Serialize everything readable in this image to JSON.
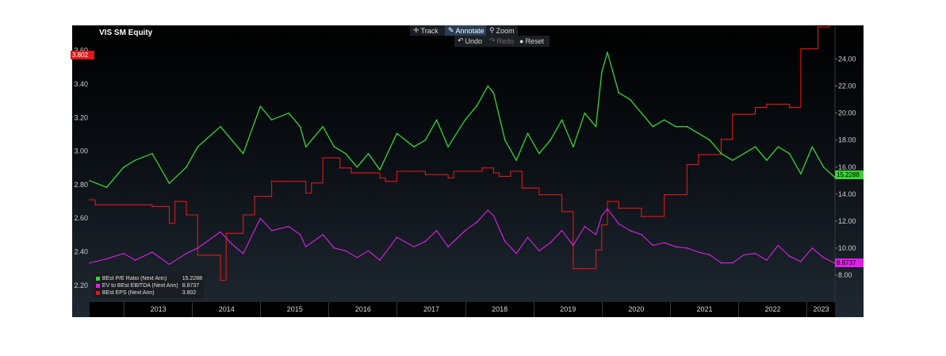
{
  "title": "VIS SM Equity",
  "toolbar": {
    "track_label": "Track",
    "annotate_label": "Annotate",
    "zoom_label": "Zoom",
    "undo_label": "Undo",
    "redo_label": "Redo",
    "reset_label": "Reset"
  },
  "badges": {
    "eps_last": "3.802",
    "pe_last": "15.2288",
    "ev_last": "8.8737"
  },
  "colors": {
    "pe": "#38d434",
    "ev": "#e020e8",
    "eps": "#e01818",
    "background": "#000000"
  },
  "chart_data": {
    "type": "line",
    "x_range": [
      "2012-07",
      "2023-06"
    ],
    "x_ticks": [
      "2013",
      "2014",
      "2015",
      "2016",
      "2017",
      "2018",
      "2019",
      "2020",
      "2021",
      "2022",
      "2023"
    ],
    "left_axis": {
      "ticks": [
        "2.20",
        "2.40",
        "2.60",
        "2.80",
        "3.00",
        "3.20",
        "3.40",
        "3.60"
      ],
      "ylim": [
        2.1,
        3.75
      ]
    },
    "right_axis": {
      "ticks": [
        "8.00",
        "10.00",
        "12.00",
        "14.00",
        "16.00",
        "18.00",
        "20.00",
        "22.00",
        "24.00"
      ],
      "ylim": [
        6.0,
        26.5
      ]
    },
    "legend": [
      {
        "name": "BEst P/E Ratio (Next Ann)",
        "value": "15.2288"
      },
      {
        "name": "EV to BEst EBITDA (Next Ann)",
        "value": "8.8737"
      },
      {
        "name": "BEst EPS (Next Ann)",
        "value": "3.802"
      }
    ],
    "series": [
      {
        "name": "BEst EPS (Next Ann)",
        "axis": "left",
        "x": [
          "2012-07",
          "2012-08",
          "2013-06",
          "2013-09",
          "2013-10",
          "2013-12",
          "2014-02",
          "2014-06",
          "2014-07",
          "2014-10",
          "2014-12",
          "2015-03",
          "2015-05",
          "2015-09",
          "2015-10",
          "2015-12",
          "2016-03",
          "2016-05",
          "2016-10",
          "2016-11",
          "2017-01",
          "2017-04",
          "2017-06",
          "2017-10",
          "2017-11",
          "2018-01",
          "2018-04",
          "2018-06",
          "2018-07",
          "2018-09",
          "2018-11",
          "2019-02",
          "2019-06",
          "2019-08",
          "2019-09",
          "2019-12",
          "2020-01",
          "2020-02",
          "2020-04",
          "2020-08",
          "2020-12",
          "2021-04",
          "2021-06",
          "2021-10",
          "2021-11",
          "2021-12",
          "2022-02",
          "2022-04",
          "2022-05",
          "2022-06",
          "2022-10",
          "2022-11",
          "2022-12",
          "2023-02",
          "2023-03",
          "2023-05",
          "2023-06"
        ],
        "values": [
          2.71,
          2.68,
          2.67,
          2.57,
          2.7,
          2.62,
          2.38,
          2.23,
          2.51,
          2.62,
          2.73,
          2.82,
          2.82,
          2.75,
          2.81,
          2.96,
          2.9,
          2.87,
          2.84,
          2.82,
          2.88,
          2.88,
          2.86,
          2.84,
          2.88,
          2.88,
          2.9,
          2.87,
          2.85,
          2.88,
          2.78,
          2.74,
          2.64,
          2.3,
          2.3,
          2.41,
          2.56,
          2.7,
          2.66,
          2.61,
          2.74,
          2.92,
          2.98,
          3.07,
          3.07,
          3.22,
          3.22,
          3.26,
          3.26,
          3.28,
          3.26,
          3.26,
          3.61,
          3.61,
          3.74,
          3.8,
          3.802
        ]
      },
      {
        "name": "BEst P/E Ratio (Next Ann)",
        "axis": "right",
        "x": [
          "2012-07",
          "2012-10",
          "2013-01",
          "2013-03",
          "2013-06",
          "2013-09",
          "2013-12",
          "2014-02",
          "2014-06",
          "2014-08",
          "2014-10",
          "2015-01",
          "2015-03",
          "2015-06",
          "2015-08",
          "2015-09",
          "2015-12",
          "2016-02",
          "2016-04",
          "2016-06",
          "2016-08",
          "2016-10",
          "2017-01",
          "2017-04",
          "2017-06",
          "2017-08",
          "2017-10",
          "2018-01",
          "2018-03",
          "2018-05",
          "2018-06",
          "2018-08",
          "2018-10",
          "2018-12",
          "2019-02",
          "2019-04",
          "2019-06",
          "2019-08",
          "2019-10",
          "2019-12",
          "2020-01",
          "2020-02",
          "2020-04",
          "2020-06",
          "2020-08",
          "2020-10",
          "2020-12",
          "2021-02",
          "2021-04",
          "2021-06",
          "2021-08",
          "2021-10",
          "2021-12",
          "2022-02",
          "2022-04",
          "2022-06",
          "2022-08",
          "2022-10",
          "2022-12",
          "2023-02",
          "2023-04",
          "2023-06"
        ],
        "values": [
          15.0,
          14.5,
          16.0,
          16.5,
          17.0,
          14.8,
          16.0,
          17.5,
          19.0,
          18.0,
          17.0,
          20.5,
          19.5,
          20.0,
          19.0,
          17.5,
          19.0,
          17.5,
          17.0,
          16.0,
          17.0,
          15.8,
          18.5,
          17.5,
          18.0,
          19.5,
          17.5,
          19.5,
          20.5,
          22.0,
          21.5,
          18.0,
          16.5,
          18.5,
          17.0,
          18.0,
          19.5,
          17.5,
          20.0,
          19.0,
          23.0,
          24.5,
          21.5,
          21.0,
          20.0,
          19.0,
          19.5,
          19.0,
          19.0,
          18.5,
          18.0,
          17.0,
          16.5,
          17.0,
          17.5,
          16.5,
          17.5,
          17.0,
          15.5,
          17.5,
          16.0,
          15.2288
        ]
      },
      {
        "name": "EV to BEst EBITDA (Next Ann)",
        "axis": "right",
        "x": [
          "2012-07",
          "2012-10",
          "2013-01",
          "2013-03",
          "2013-06",
          "2013-09",
          "2013-12",
          "2014-02",
          "2014-06",
          "2014-08",
          "2014-10",
          "2015-01",
          "2015-03",
          "2015-06",
          "2015-08",
          "2015-09",
          "2015-12",
          "2016-02",
          "2016-04",
          "2016-06",
          "2016-08",
          "2016-10",
          "2017-01",
          "2017-04",
          "2017-06",
          "2017-08",
          "2017-10",
          "2018-01",
          "2018-03",
          "2018-05",
          "2018-06",
          "2018-08",
          "2018-10",
          "2018-12",
          "2019-02",
          "2019-04",
          "2019-06",
          "2019-08",
          "2019-10",
          "2019-12",
          "2020-01",
          "2020-02",
          "2020-04",
          "2020-06",
          "2020-08",
          "2020-10",
          "2020-12",
          "2021-02",
          "2021-04",
          "2021-06",
          "2021-08",
          "2021-10",
          "2021-12",
          "2022-02",
          "2022-04",
          "2022-06",
          "2022-08",
          "2022-10",
          "2022-12",
          "2023-02",
          "2023-04",
          "2023-06"
        ],
        "values": [
          8.9,
          9.2,
          9.6,
          9.1,
          9.7,
          8.8,
          9.6,
          10.0,
          11.2,
          10.3,
          9.6,
          12.2,
          11.3,
          11.6,
          11.0,
          10.1,
          11.0,
          10.0,
          9.8,
          9.3,
          9.8,
          9.1,
          10.8,
          10.1,
          10.5,
          11.3,
          10.1,
          11.3,
          11.9,
          12.8,
          12.4,
          10.5,
          9.6,
          10.8,
          9.8,
          10.4,
          11.3,
          10.2,
          11.6,
          11.0,
          12.4,
          12.9,
          11.8,
          11.3,
          11.0,
          10.2,
          10.4,
          10.1,
          10.0,
          9.7,
          9.5,
          8.9,
          8.9,
          9.5,
          9.6,
          9.1,
          10.2,
          9.4,
          9.0,
          10.0,
          9.3,
          8.8737
        ]
      }
    ]
  }
}
